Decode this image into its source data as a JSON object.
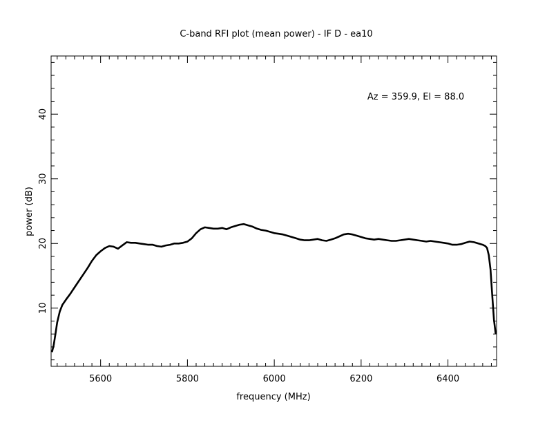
{
  "chart_data": {
    "type": "line",
    "title": "C-band RFI plot (mean power) - IF D - ea10",
    "xlabel": "frequency (MHz)",
    "ylabel": "power (dB)",
    "annotation": "Az = 359.9, El = 88.0",
    "xlim": [
      5486,
      6512
    ],
    "ylim": [
      1.0,
      49.0
    ],
    "x_ticks": [
      5600,
      5800,
      6000,
      6200,
      6400
    ],
    "y_ticks": [
      10,
      20,
      30,
      40
    ],
    "x_tick_labels": [
      "5600",
      "5800",
      "6000",
      "6200",
      "6400"
    ],
    "y_tick_labels": [
      "10",
      "20",
      "30",
      "40"
    ],
    "grid": false,
    "line_color": "#000000",
    "series": [
      {
        "x": [
          5488,
          5492,
          5496,
          5500,
          5506,
          5512,
          5520,
          5530,
          5540,
          5550,
          5560,
          5570,
          5580,
          5590,
          5600,
          5610,
          5620,
          5630,
          5640,
          5650,
          5660,
          5670,
          5680,
          5690,
          5700,
          5710,
          5720,
          5730,
          5740,
          5750,
          5760,
          5770,
          5780,
          5790,
          5800,
          5810,
          5820,
          5830,
          5840,
          5850,
          5860,
          5870,
          5880,
          5890,
          5900,
          5910,
          5920,
          5930,
          5940,
          5950,
          5960,
          5970,
          5980,
          5990,
          6000,
          6010,
          6020,
          6030,
          6040,
          6050,
          6060,
          6070,
          6080,
          6090,
          6100,
          6110,
          6120,
          6130,
          6140,
          6150,
          6160,
          6170,
          6180,
          6190,
          6200,
          6210,
          6220,
          6230,
          6240,
          6250,
          6260,
          6270,
          6280,
          6290,
          6300,
          6310,
          6320,
          6330,
          6340,
          6350,
          6360,
          6370,
          6380,
          6390,
          6400,
          6410,
          6420,
          6430,
          6440,
          6450,
          6460,
          6470,
          6480,
          6486,
          6490,
          6494,
          6498,
          6502,
          6506,
          6510
        ],
        "y": [
          3.2,
          4.3,
          6.0,
          7.8,
          9.5,
          10.5,
          11.3,
          12.2,
          13.2,
          14.2,
          15.2,
          16.2,
          17.3,
          18.2,
          18.8,
          19.3,
          19.6,
          19.5,
          19.2,
          19.7,
          20.2,
          20.1,
          20.1,
          20.0,
          19.9,
          19.8,
          19.8,
          19.6,
          19.5,
          19.7,
          19.8,
          20.0,
          20.0,
          20.1,
          20.3,
          20.8,
          21.6,
          22.2,
          22.5,
          22.4,
          22.3,
          22.3,
          22.4,
          22.2,
          22.5,
          22.7,
          22.9,
          23.0,
          22.8,
          22.6,
          22.3,
          22.1,
          22.0,
          21.8,
          21.6,
          21.5,
          21.4,
          21.2,
          21.0,
          20.8,
          20.6,
          20.5,
          20.5,
          20.6,
          20.7,
          20.5,
          20.4,
          20.6,
          20.8,
          21.1,
          21.4,
          21.5,
          21.4,
          21.2,
          21.0,
          20.8,
          20.7,
          20.6,
          20.7,
          20.6,
          20.5,
          20.4,
          20.4,
          20.5,
          20.6,
          20.7,
          20.6,
          20.5,
          20.4,
          20.3,
          20.4,
          20.3,
          20.2,
          20.1,
          20.0,
          19.8,
          19.8,
          19.9,
          20.1,
          20.3,
          20.2,
          20.0,
          19.8,
          19.6,
          19.3,
          18.2,
          16.0,
          12.0,
          8.2,
          6.0
        ]
      }
    ]
  }
}
